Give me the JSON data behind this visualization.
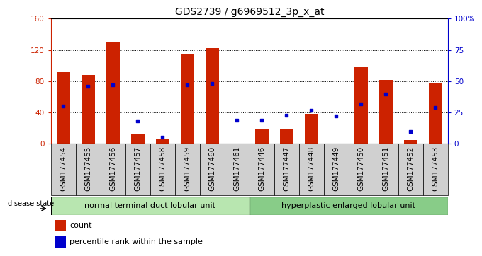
{
  "title": "GDS2739 / g6969512_3p_x_at",
  "samples": [
    "GSM177454",
    "GSM177455",
    "GSM177456",
    "GSM177457",
    "GSM177458",
    "GSM177459",
    "GSM177460",
    "GSM177461",
    "GSM177446",
    "GSM177447",
    "GSM177448",
    "GSM177449",
    "GSM177450",
    "GSM177451",
    "GSM177452",
    "GSM177453"
  ],
  "counts": [
    92,
    88,
    130,
    12,
    7,
    115,
    122,
    0,
    18,
    18,
    38,
    0,
    98,
    82,
    5,
    78
  ],
  "percentiles": [
    30,
    46,
    47,
    18,
    5,
    47,
    48,
    19,
    19,
    23,
    27,
    22,
    32,
    40,
    10,
    29
  ],
  "group1_label": "normal terminal duct lobular unit",
  "group2_label": "hyperplastic enlarged lobular unit",
  "group1_count": 8,
  "group2_count": 8,
  "ylim_left": [
    0,
    160
  ],
  "ylim_right": [
    0,
    100
  ],
  "yticks_left": [
    0,
    40,
    80,
    120,
    160
  ],
  "yticks_right": [
    0,
    25,
    50,
    75,
    100
  ],
  "ytick_labels_right": [
    "0",
    "25",
    "50",
    "75",
    "100%"
  ],
  "bar_color": "#cc2200",
  "dot_color": "#0000cc",
  "bar_width": 0.55,
  "axis_color_left": "#cc2200",
  "axis_color_right": "#0000cc",
  "group1_color": "#b8e6b0",
  "group2_color": "#88cc88",
  "xtick_bg": "#d0d0d0",
  "disease_state_label": "disease state",
  "legend_count_label": "count",
  "legend_pct_label": "percentile rank within the sample",
  "title_fontsize": 10,
  "tick_fontsize": 7.5,
  "label_fontsize": 8
}
